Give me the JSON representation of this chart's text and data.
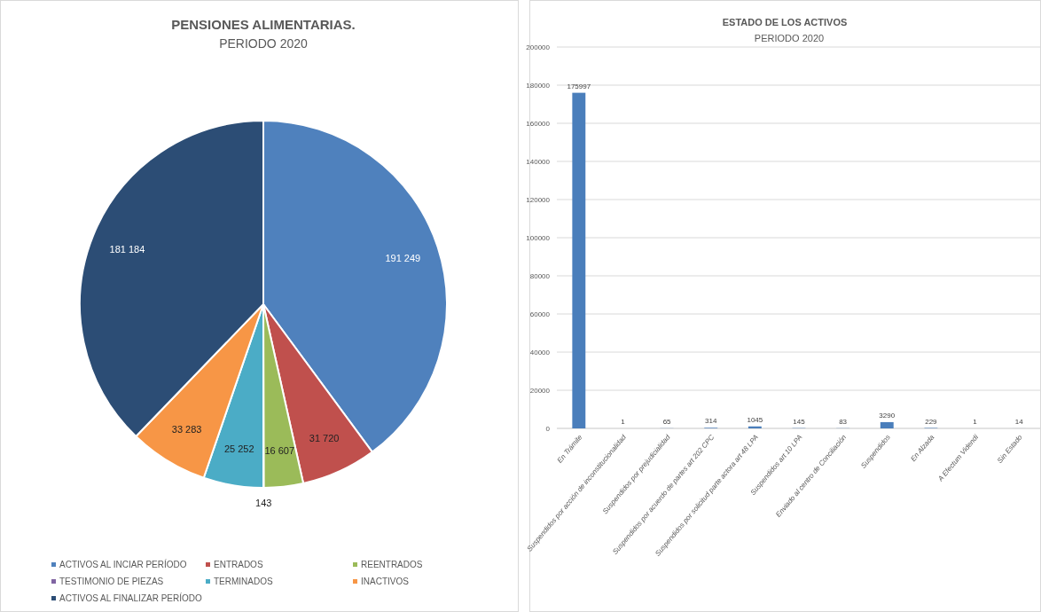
{
  "chart_data": [
    {
      "type": "pie",
      "title": "PENSIONES ALIMENTARIAS.",
      "subtitle": "PERIODO 2020",
      "categories": [
        "ACTIVOS AL INCIAR PERÍODO",
        "ENTRADOS",
        "REENTRADOS",
        "TESTIMONIO DE PIEZAS",
        "TERMINADOS",
        "INACTIVOS",
        "ACTIVOS AL FINALIZAR  PERÍODO"
      ],
      "values": [
        191249,
        31720,
        16607,
        143,
        25252,
        33283,
        181184
      ],
      "value_labels": [
        "191 249",
        "31 720",
        "16 607",
        "143",
        "25 252",
        "33 283",
        "181 184"
      ],
      "colors": [
        "#4f81bd",
        "#c0504d",
        "#9bbb59",
        "#8064a2",
        "#4bacc6",
        "#f79646",
        "#2c4d75"
      ],
      "legend": "bottom"
    },
    {
      "type": "bar",
      "title": "ESTADO DE LOS ACTIVOS",
      "subtitle": "PERIODO 2020",
      "categories": [
        "En Trámite",
        "Suspendidos por acción de inconstitucionalidad",
        "Suspendidos por prejudicialidad",
        "Suspendidos por acuerdo de partes art 202 CPC",
        "Suspendidos por solicitud parte actora art 48 LPA",
        "Suspendidos art 10 LPA",
        "Enviado al centro de Conciliación",
        "Suspendidos",
        "En Alzada",
        "A Efectum Videndi",
        "Sin Estado"
      ],
      "values": [
        175997,
        1,
        65,
        314,
        1045,
        145,
        83,
        3290,
        229,
        1,
        14
      ],
      "color": "#4a7ebb",
      "data_labels": true,
      "grid": "y",
      "ylim": [
        0,
        200000
      ],
      "yticks": [
        0,
        20000,
        40000,
        60000,
        80000,
        100000,
        120000,
        140000,
        160000,
        180000,
        200000
      ]
    }
  ]
}
